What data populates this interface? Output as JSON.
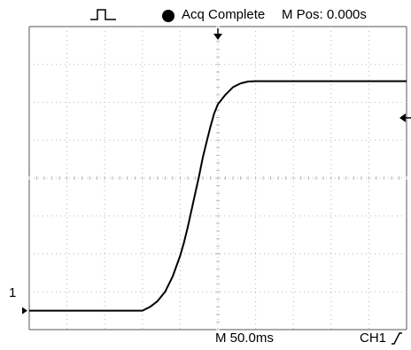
{
  "status_bar": {
    "acq_status": "Acq Complete",
    "position_readout": "M Pos: 0.000s",
    "trigger_icon": "pulse-icon",
    "run_icon": "filled-circle-icon"
  },
  "footer": {
    "timebase": "M 50.0ms",
    "trigger_source": "CH1",
    "trigger_slope_icon": "rising-edge-icon"
  },
  "channel_marker": {
    "label": "1"
  },
  "colors": {
    "trace": "#000000",
    "grid": "#b8b8b8",
    "background": "#ffffff"
  },
  "chart_data": {
    "type": "line",
    "grid": true,
    "x_divisions": 10,
    "y_divisions": 8,
    "x_range_div": [
      -5,
      5
    ],
    "y_range_div": [
      -4,
      4
    ],
    "series": [
      {
        "x": [
          -5.0,
          -2.0,
          -1.8,
          -1.6,
          -1.4,
          -1.2,
          -1.0,
          -0.9,
          -0.8,
          -0.7,
          -0.6,
          -0.5,
          -0.4,
          -0.3,
          -0.2,
          -0.1,
          0.0,
          0.2,
          0.4,
          0.6,
          0.8,
          1.0,
          5.0
        ],
        "y": [
          -3.5,
          -3.5,
          -3.4,
          -3.25,
          -3.0,
          -2.6,
          -2.05,
          -1.7,
          -1.3,
          -0.85,
          -0.4,
          0.05,
          0.55,
          0.95,
          1.35,
          1.7,
          1.95,
          2.2,
          2.4,
          2.5,
          2.55,
          2.56,
          2.56
        ]
      }
    ]
  }
}
